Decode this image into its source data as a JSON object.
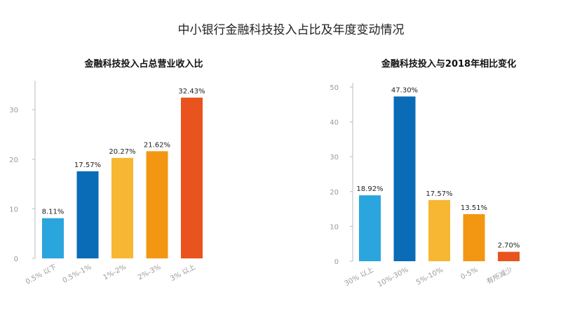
{
  "title": "中小银行金融科技投入占比及年度变动情况",
  "chart_data": [
    {
      "type": "bar",
      "title": "金融科技投入占总营业收入比",
      "categories": [
        "0.5% 以下",
        "0.5%-1%",
        "1%-2%",
        "2%-3%",
        "3% 以上"
      ],
      "values": [
        8.11,
        17.57,
        20.27,
        21.62,
        32.43
      ],
      "value_labels": [
        "8.11%",
        "17.57%",
        "20.27%",
        "21.62%",
        "32.43%"
      ],
      "colors": [
        "#2AA5DE",
        "#0A6BB7",
        "#F8B732",
        "#F39712",
        "#E9531D"
      ],
      "yticks": [
        0,
        10,
        20,
        30
      ],
      "ylim": [
        0,
        35
      ],
      "grid": false
    },
    {
      "type": "bar",
      "title": "金融科技投入与2018年相比变化",
      "categories": [
        "30% 以上",
        "10%-30%",
        "5%-10%",
        "0-5%",
        "有所减少"
      ],
      "values": [
        18.92,
        47.3,
        17.57,
        13.51,
        2.7
      ],
      "value_labels": [
        "18.92%",
        "47.30%",
        "17.57%",
        "13.51%",
        "2.70%"
      ],
      "colors": [
        "#2AA5DE",
        "#0A6BB7",
        "#F8B732",
        "#F39712",
        "#E9531D"
      ],
      "yticks": [
        0,
        10,
        20,
        30,
        40,
        50
      ],
      "ylim": [
        0,
        50
      ],
      "grid": false
    }
  ]
}
